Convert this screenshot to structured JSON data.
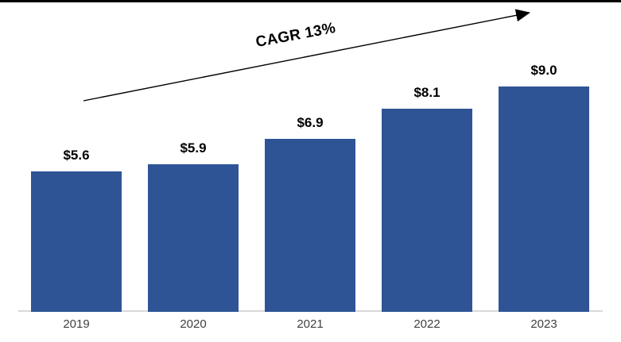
{
  "chart_data": {
    "type": "bar",
    "title": "",
    "categories": [
      "2019",
      "2020",
      "2021",
      "2022",
      "2023"
    ],
    "values": [
      5.6,
      5.9,
      6.9,
      8.1,
      9.0
    ],
    "value_labels": [
      "$5.6",
      "$5.9",
      "$6.9",
      "$8.1",
      "$9.0"
    ],
    "annotation": "CAGR 13%",
    "xlabel": "",
    "ylabel": "",
    "ylim": [
      0,
      9.5
    ],
    "y_axis_visible": false,
    "grid": false,
    "legend": null,
    "colors": {
      "bar": "#2F5496",
      "axis_line": "#D9D9D9",
      "value_text": "#000000",
      "year_text": "#3F3F3F",
      "arrow": "#000000",
      "top_border": "#000000"
    }
  }
}
